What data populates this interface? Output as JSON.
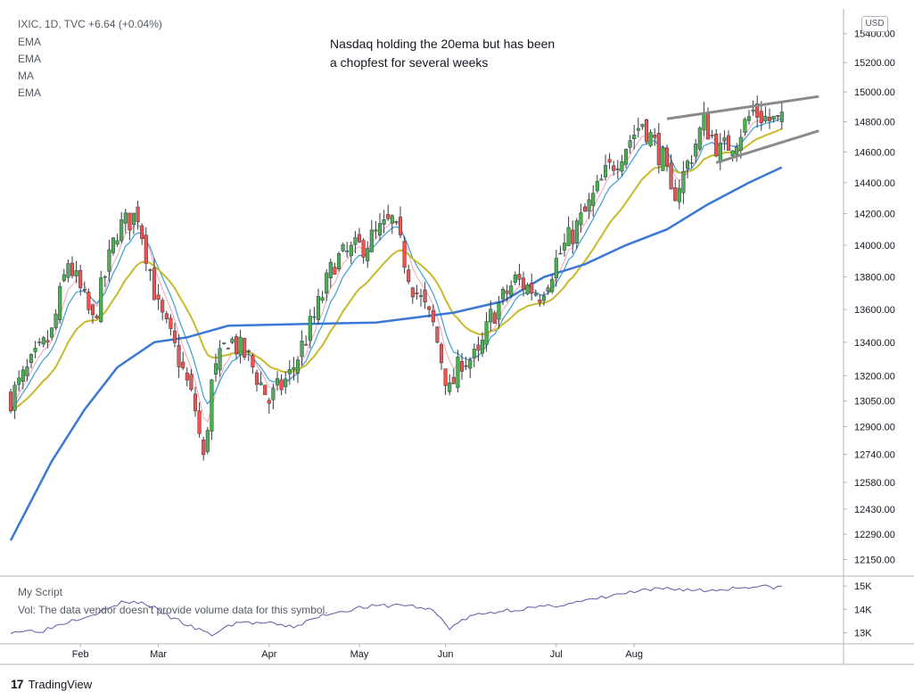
{
  "header": {
    "symbol_line": "IXIC, 1D, TVC  +6.64 (+0.04%)",
    "indicators": [
      "EMA",
      "EMA",
      "MA",
      "EMA"
    ]
  },
  "annotation": {
    "line1": "Nasdaq holding the 20ema but has been",
    "line2": "a chopfest for several weeks"
  },
  "currency_badge": "USD",
  "volume_pane": {
    "title": "My Script",
    "message": "Vol: The data vendor doesn't provide volume data for this symbol.",
    "y_ticks": [
      "15K",
      "14K",
      "13K"
    ]
  },
  "brand": {
    "name": "TradingView",
    "logo_icon": "tradingview-logo-icon"
  },
  "colors": {
    "up": "#26a69a",
    "up_candle": "#4caf50",
    "down": "#ef5350",
    "ema_fast": "#3a9fd6",
    "ema_pink": "#f5a3b5",
    "ema_20": "#c9b92a",
    "ma_long": "#3a78d6",
    "trendline": "#8a8a8a",
    "volume_line": "#5b5ba8"
  },
  "chart_data": {
    "type": "candlestick",
    "title": "",
    "xlabel": "",
    "ylabel": "",
    "x_tick_labels": [
      "Feb",
      "Mar",
      "Apr",
      "May",
      "Jun",
      "Jul",
      "Aug"
    ],
    "y_tick_labels": [
      "15400.00",
      "15200.00",
      "15000.00",
      "14800.00",
      "14600.00",
      "14400.00",
      "14200.00",
      "14000.00",
      "13800.00",
      "13600.00",
      "13400.00",
      "13200.00",
      "13050.00",
      "12900.00",
      "12740.00",
      "12580.00",
      "12430.00",
      "12290.00",
      "12150.00"
    ],
    "y_axis": "log",
    "ylim": [
      12060,
      15560
    ],
    "grid": false,
    "last_change": "+6.64 (+0.04%)",
    "anchors": [
      [
        0,
        13070
      ],
      [
        10,
        13450
      ],
      [
        14,
        13900
      ],
      [
        20,
        13520
      ],
      [
        26,
        14100
      ],
      [
        31,
        14200
      ],
      [
        36,
        13600
      ],
      [
        41,
        13300
      ],
      [
        45,
        13000
      ],
      [
        47,
        12700
      ],
      [
        49,
        13150
      ],
      [
        53,
        13430
      ],
      [
        58,
        13300
      ],
      [
        63,
        13050
      ],
      [
        68,
        13200
      ],
      [
        74,
        13550
      ],
      [
        79,
        13900
      ],
      [
        86,
        14000
      ],
      [
        93,
        14150
      ],
      [
        98,
        13750
      ],
      [
        103,
        13500
      ],
      [
        107,
        13100
      ],
      [
        110,
        13300
      ],
      [
        114,
        13300
      ],
      [
        117,
        13550
      ],
      [
        123,
        13780
      ],
      [
        129,
        13700
      ],
      [
        134,
        13950
      ],
      [
        140,
        14200
      ],
      [
        145,
        14450
      ],
      [
        150,
        14650
      ],
      [
        154,
        14800
      ],
      [
        159,
        14550
      ],
      [
        161,
        14300
      ],
      [
        164,
        14450
      ],
      [
        169,
        14800
      ],
      [
        173,
        14600
      ],
      [
        177,
        14700
      ],
      [
        181,
        14870
      ],
      [
        185,
        14810
      ],
      [
        188,
        14790
      ]
    ],
    "ma_long_points": [
      [
        0,
        12255
      ],
      [
        10,
        12700
      ],
      [
        18,
        13000
      ],
      [
        26,
        13250
      ],
      [
        35,
        13400
      ],
      [
        43,
        13430
      ],
      [
        53,
        13500
      ],
      [
        70,
        13510
      ],
      [
        89,
        13520
      ],
      [
        108,
        13580
      ],
      [
        120,
        13650
      ],
      [
        130,
        13800
      ],
      [
        140,
        13880
      ],
      [
        150,
        14000
      ],
      [
        160,
        14100
      ],
      [
        170,
        14260
      ],
      [
        180,
        14400
      ],
      [
        188,
        14500
      ]
    ],
    "trendlines": [
      {
        "from": [
          160,
          14820
        ],
        "to": [
          197,
          14970
        ]
      },
      {
        "from": [
          172,
          14530
        ],
        "to": [
          197,
          14740
        ]
      }
    ],
    "volume_pane_series": [
      [
        0,
        13050
      ],
      [
        8,
        13100
      ],
      [
        15,
        13550
      ],
      [
        22,
        13900
      ],
      [
        28,
        14350
      ],
      [
        33,
        14250
      ],
      [
        38,
        13750
      ],
      [
        44,
        13250
      ],
      [
        49,
        12900
      ],
      [
        55,
        13450
      ],
      [
        62,
        13400
      ],
      [
        69,
        13250
      ],
      [
        77,
        13800
      ],
      [
        86,
        14100
      ],
      [
        96,
        14200
      ],
      [
        103,
        13950
      ],
      [
        107,
        13200
      ],
      [
        112,
        13700
      ],
      [
        120,
        13950
      ],
      [
        130,
        14100
      ],
      [
        140,
        14350
      ],
      [
        150,
        14700
      ],
      [
        160,
        14900
      ],
      [
        170,
        14800
      ],
      [
        180,
        14980
      ],
      [
        188,
        14950
      ]
    ],
    "volume_ylim": [
      12750,
      15200
    ],
    "volume_ticks": [
      15000,
      14000,
      13000
    ]
  }
}
